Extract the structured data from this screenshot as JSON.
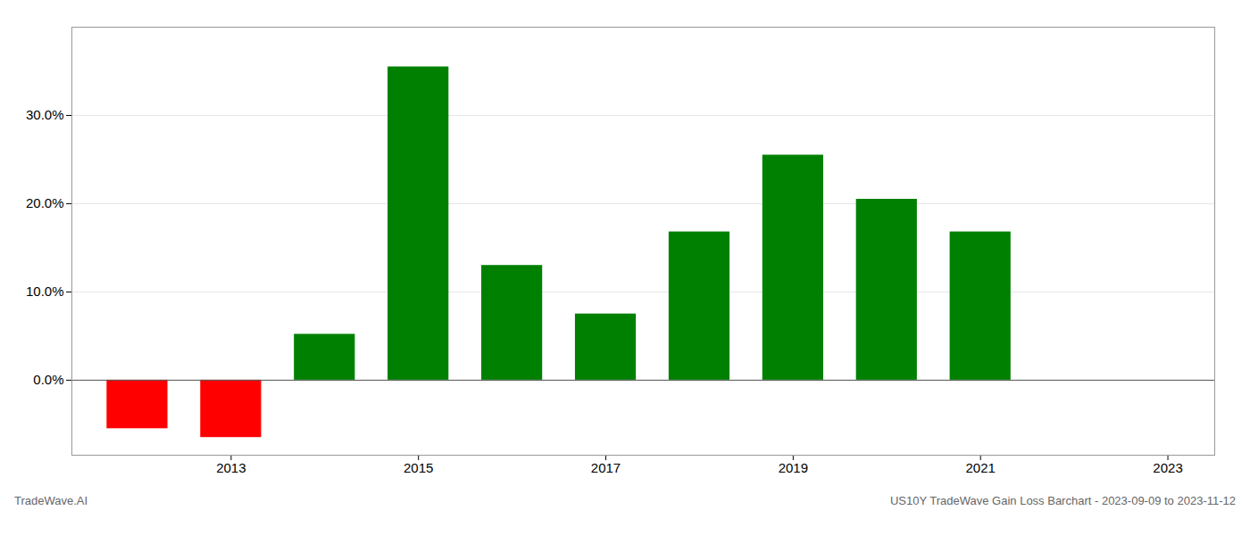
{
  "chart_data": {
    "type": "bar",
    "x": [
      2012,
      2013,
      2014,
      2015,
      2016,
      2017,
      2018,
      2019,
      2020,
      2021
    ],
    "values": [
      -0.055,
      -0.065,
      0.052,
      0.355,
      0.13,
      0.075,
      0.168,
      0.255,
      0.205,
      0.168
    ],
    "colors": [
      "#ff0000",
      "#ff0000",
      "#008000",
      "#008000",
      "#008000",
      "#008000",
      "#008000",
      "#008000",
      "#008000",
      "#008000"
    ],
    "annotations": [
      "TradeWave.AI",
      "US10Y TradeWave Gain Loss Barchart - 2023-09-09 to 2023-11-12"
    ],
    "xlim": [
      2011.3,
      2023.5
    ],
    "xticks": [
      2013,
      2015,
      2017,
      2019,
      2021,
      2023
    ],
    "ylim": [
      -0.085,
      0.4
    ],
    "yticks": [
      {
        "value": 0.0,
        "label": "0.0%"
      },
      {
        "value": 0.1,
        "label": "10.0%"
      },
      {
        "value": 0.2,
        "label": "20.0%"
      },
      {
        "value": 0.3,
        "label": "30.0%"
      }
    ],
    "grid": true
  }
}
